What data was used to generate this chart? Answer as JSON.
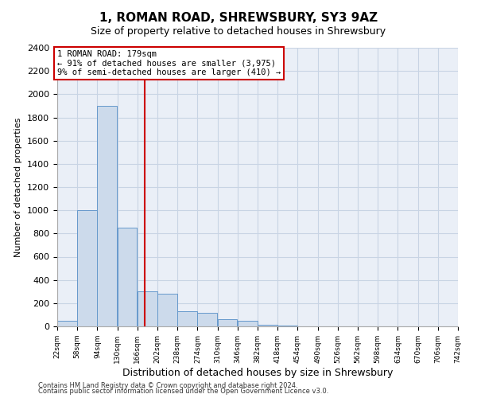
{
  "title": "1, ROMAN ROAD, SHREWSBURY, SY3 9AZ",
  "subtitle": "Size of property relative to detached houses in Shrewsbury",
  "xlabel": "Distribution of detached houses by size in Shrewsbury",
  "ylabel": "Number of detached properties",
  "bin_edges": [
    22,
    58,
    94,
    130,
    166,
    202,
    238,
    274,
    310,
    346,
    382,
    418,
    454,
    490,
    526,
    562,
    598,
    634,
    670,
    706,
    742
  ],
  "bar_heights": [
    50,
    1000,
    1900,
    850,
    300,
    280,
    130,
    120,
    60,
    50,
    15,
    10,
    0,
    0,
    0,
    0,
    0,
    0,
    0,
    0
  ],
  "bar_color": "#ccdaeb",
  "bar_edgecolor": "#6699cc",
  "vline_x": 179,
  "vline_color": "#cc0000",
  "annotation_box_color": "#cc0000",
  "annotation_line1": "1 ROMAN ROAD: 179sqm",
  "annotation_line2": "← 91% of detached houses are smaller (3,975)",
  "annotation_line3": "9% of semi-detached houses are larger (410) →",
  "ylim": [
    0,
    2400
  ],
  "yticks": [
    0,
    200,
    400,
    600,
    800,
    1000,
    1200,
    1400,
    1600,
    1800,
    2000,
    2200,
    2400
  ],
  "grid_color": "#c8d4e4",
  "background_color": "#eaeff7",
  "footer_line1": "Contains HM Land Registry data © Crown copyright and database right 2024.",
  "footer_line2": "Contains public sector information licensed under the Open Government Licence v3.0.",
  "tick_labels": [
    "22sqm",
    "58sqm",
    "94sqm",
    "130sqm",
    "166sqm",
    "202sqm",
    "238sqm",
    "274sqm",
    "310sqm",
    "346sqm",
    "382sqm",
    "418sqm",
    "454sqm",
    "490sqm",
    "526sqm",
    "562sqm",
    "598sqm",
    "634sqm",
    "670sqm",
    "706sqm",
    "742sqm"
  ],
  "title_fontsize": 11,
  "subtitle_fontsize": 9,
  "ylabel_fontsize": 8,
  "xlabel_fontsize": 9
}
